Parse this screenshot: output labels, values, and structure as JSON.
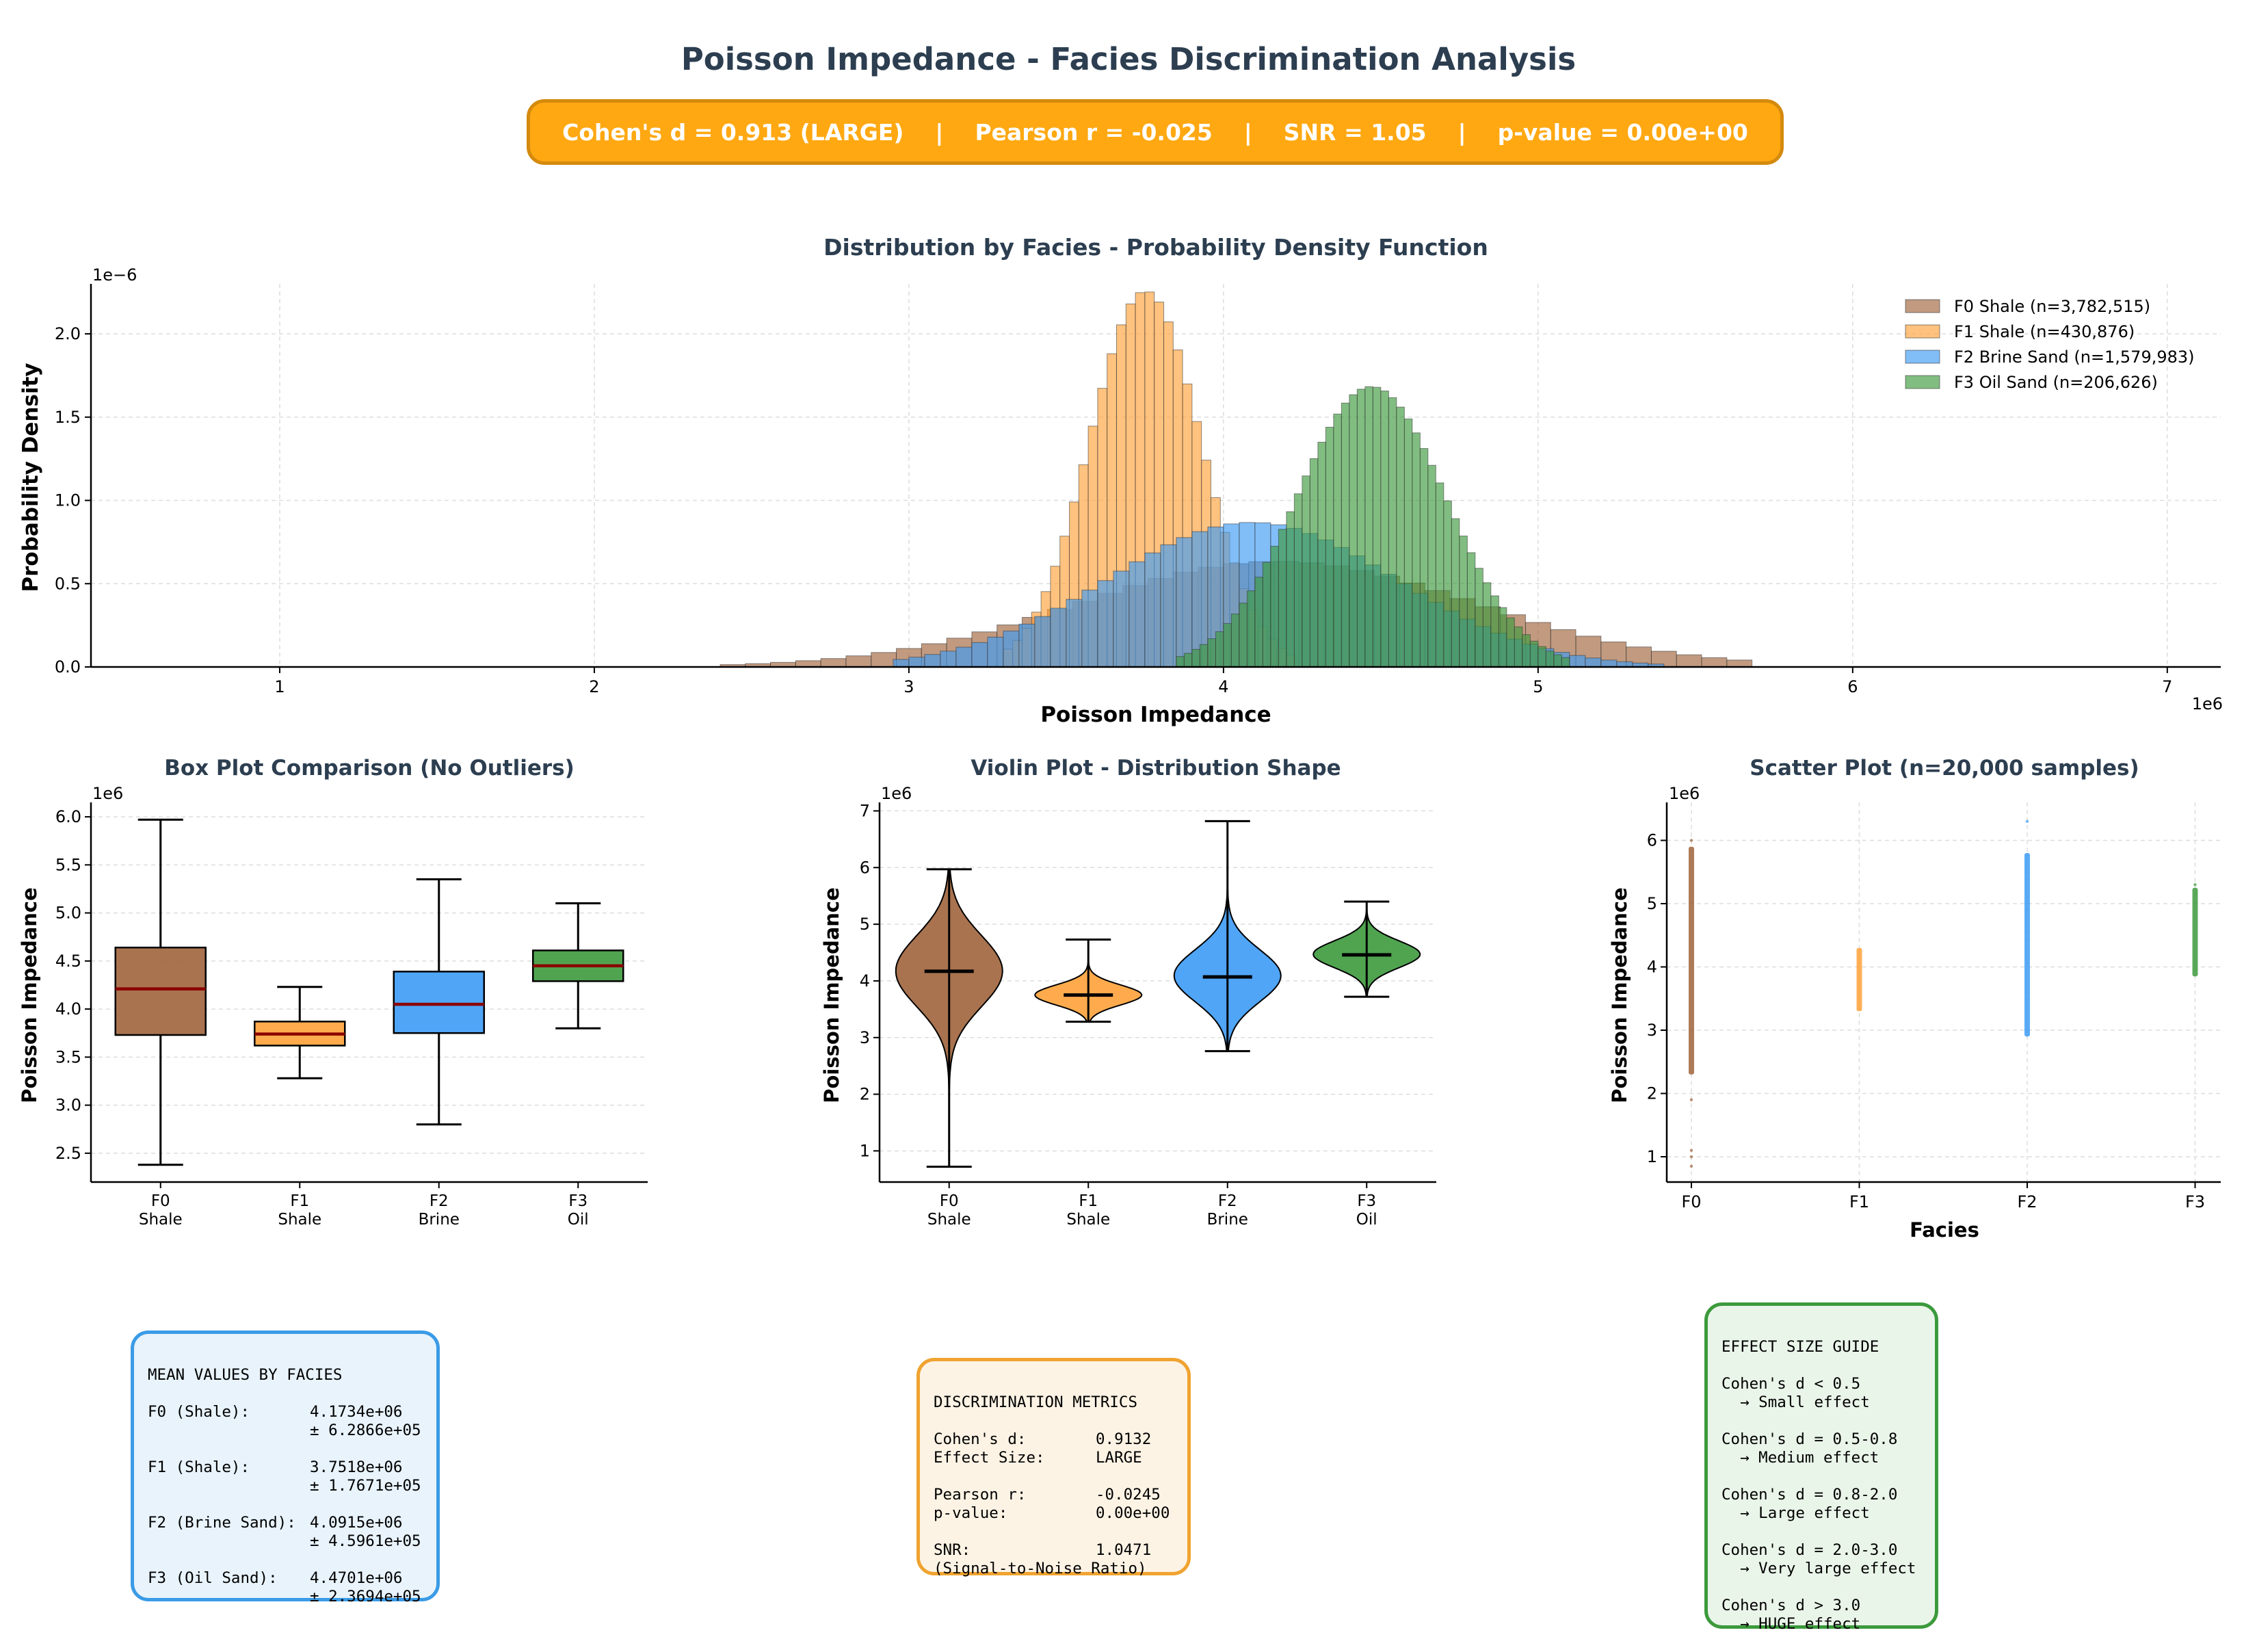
{
  "header": {
    "title": "Poisson Impedance - Facies Discrimination Analysis",
    "metrics_banner": "Cohen's d = 0.913 (LARGE)    |    Pearson r = -0.025    |    SNR = 1.05    |    p-value = 0.00e+00"
  },
  "colors": {
    "f0": "#a0643c",
    "f1": "#ffa23a",
    "f2": "#3d9bf5",
    "f3": "#3d9a3d",
    "title": "#2c3e50",
    "median": "#8b0000",
    "banner": "#ffa812"
  },
  "chart_data": [
    {
      "type": "histogram",
      "title": "Distribution by Facies - Probability Density Function",
      "xlabel": "Poisson Impedance",
      "ylabel": "Probability Density",
      "x_offset_label": "1e6",
      "y_offset_label": "1e−6",
      "xlim": [
        0.4,
        7.17
      ],
      "ylim": [
        0,
        2.3
      ],
      "xticks": [
        1,
        2,
        3,
        4,
        5,
        6,
        7
      ],
      "yticks": [
        0.0,
        0.5,
        1.0,
        1.5,
        2.0
      ],
      "ytick_labels": [
        "0.0",
        "0.5",
        "1.0",
        "1.5",
        "2.0"
      ],
      "grid": true,
      "legend_position": "top-right",
      "series": [
        {
          "name": "F0 Shale (n=3,782,515)",
          "mean": 4.1734,
          "std": 0.62866,
          "range": [
            2.4,
            5.65
          ],
          "bin_width": 0.08
        },
        {
          "name": "F1 Shale (n=430,876)",
          "mean": 3.7518,
          "std": 0.17671,
          "range": [
            3.3,
            4.22
          ],
          "bin_width": 0.03
        },
        {
          "name": "F2 Brine Sand (n=1,579,983)",
          "mean": 4.0915,
          "std": 0.45961,
          "range": [
            2.95,
            5.4
          ],
          "bin_width": 0.05
        },
        {
          "name": "F3 Oil Sand (n=206,626)",
          "mean": 4.4701,
          "std": 0.23694,
          "range": [
            3.85,
            5.1
          ],
          "bin_width": 0.025
        }
      ]
    },
    {
      "type": "box",
      "title": "Box Plot Comparison (No Outliers)",
      "ylabel": "Poisson Impedance",
      "y_offset_label": "1e6",
      "ylim": [
        2.2,
        6.15
      ],
      "yticks": [
        2.5,
        3.0,
        3.5,
        4.0,
        4.5,
        5.0,
        5.5,
        6.0
      ],
      "ytick_labels": [
        "2.5",
        "3.0",
        "3.5",
        "4.0",
        "4.5",
        "5.0",
        "5.5",
        "6.0"
      ],
      "categories": [
        "F0\nShale",
        "F1\nShale",
        "F2\nBrine",
        "F3\nOil"
      ],
      "boxes": [
        {
          "whislo": 2.38,
          "q1": 3.73,
          "med": 4.21,
          "q3": 4.64,
          "whishi": 5.97
        },
        {
          "whislo": 3.28,
          "q1": 3.62,
          "med": 3.74,
          "q3": 3.87,
          "whishi": 4.23
        },
        {
          "whislo": 2.8,
          "q1": 3.75,
          "med": 4.05,
          "q3": 4.39,
          "whishi": 5.35
        },
        {
          "whislo": 3.8,
          "q1": 4.29,
          "med": 4.45,
          "q3": 4.61,
          "whishi": 5.1
        }
      ]
    },
    {
      "type": "violin",
      "title": "Violin Plot - Distribution Shape",
      "ylabel": "Poisson Impedance",
      "y_offset_label": "1e6",
      "ylim": [
        0.45,
        7.15
      ],
      "yticks": [
        1,
        2,
        3,
        4,
        5,
        6,
        7
      ],
      "categories": [
        "F0\nShale",
        "F1\nShale",
        "F2\nBrine",
        "F3\nOil"
      ],
      "violins": [
        {
          "min": 0.72,
          "max": 5.97,
          "median": 4.17,
          "mean": 4.1734,
          "std": 0.62866
        },
        {
          "min": 3.28,
          "max": 4.73,
          "median": 3.75,
          "mean": 3.7518,
          "std": 0.17671
        },
        {
          "min": 2.76,
          "max": 6.82,
          "median": 4.07,
          "mean": 4.0915,
          "std": 0.45961
        },
        {
          "min": 3.72,
          "max": 5.4,
          "median": 4.46,
          "mean": 4.4701,
          "std": 0.23694
        }
      ]
    },
    {
      "type": "scatter",
      "title": "Scatter Plot (n=20,000 samples)",
      "xlabel": "Facies",
      "ylabel": "Poisson Impedance",
      "y_offset_label": "1e6",
      "ylim": [
        0.6,
        6.6
      ],
      "yticks": [
        1,
        2,
        3,
        4,
        5,
        6
      ],
      "categories": [
        "F0",
        "F1",
        "F2",
        "F3"
      ],
      "ranges": [
        [
          2.3,
          5.9
        ],
        [
          3.3,
          4.3
        ],
        [
          2.9,
          5.8
        ],
        [
          3.85,
          5.25
        ]
      ],
      "outliers": [
        [
          0.85,
          1.0,
          1.1,
          1.9,
          6.0
        ],
        [],
        [
          6.3
        ],
        [
          5.3
        ]
      ]
    }
  ],
  "mean_box": {
    "title": "MEAN VALUES BY FACIES",
    "rows": [
      {
        "label": "F0 (Shale):",
        "mean": "4.1734e+06",
        "std": "± 6.2866e+05"
      },
      {
        "label": "F1 (Shale):",
        "mean": "3.7518e+06",
        "std": "± 1.7671e+05"
      },
      {
        "label": "F2 (Brine Sand):",
        "mean": "4.0915e+06",
        "std": "± 4.5961e+05"
      },
      {
        "label": "F3 (Oil Sand):",
        "mean": "4.4701e+06",
        "std": "± 2.3694e+05"
      }
    ]
  },
  "discrimination_box": {
    "title": "DISCRIMINATION METRICS",
    "cohens_d_label": "Cohen's d:",
    "cohens_d_value": "0.9132",
    "effect_size_label": "Effect Size:",
    "effect_size_value": "LARGE",
    "pearson_label": "Pearson r:",
    "pearson_value": "-0.0245",
    "pvalue_label": "p-value:",
    "pvalue_value": "0.00e+00",
    "snr_label": "SNR:",
    "snr_value": "1.0471",
    "snr_note": "(Signal-to-Noise Ratio)"
  },
  "effect_guide_box": {
    "title": "EFFECT SIZE GUIDE",
    "items": [
      {
        "rule": "Cohen's d < 0.5",
        "effect": "  → Small effect"
      },
      {
        "rule": "Cohen's d = 0.5-0.8",
        "effect": "  → Medium effect"
      },
      {
        "rule": "Cohen's d = 0.8-2.0",
        "effect": "  → Large effect"
      },
      {
        "rule": "Cohen's d = 2.0-3.0",
        "effect": "  → Very large effect"
      },
      {
        "rule": "Cohen's d > 3.0",
        "effect": "  → HUGE effect"
      }
    ]
  }
}
